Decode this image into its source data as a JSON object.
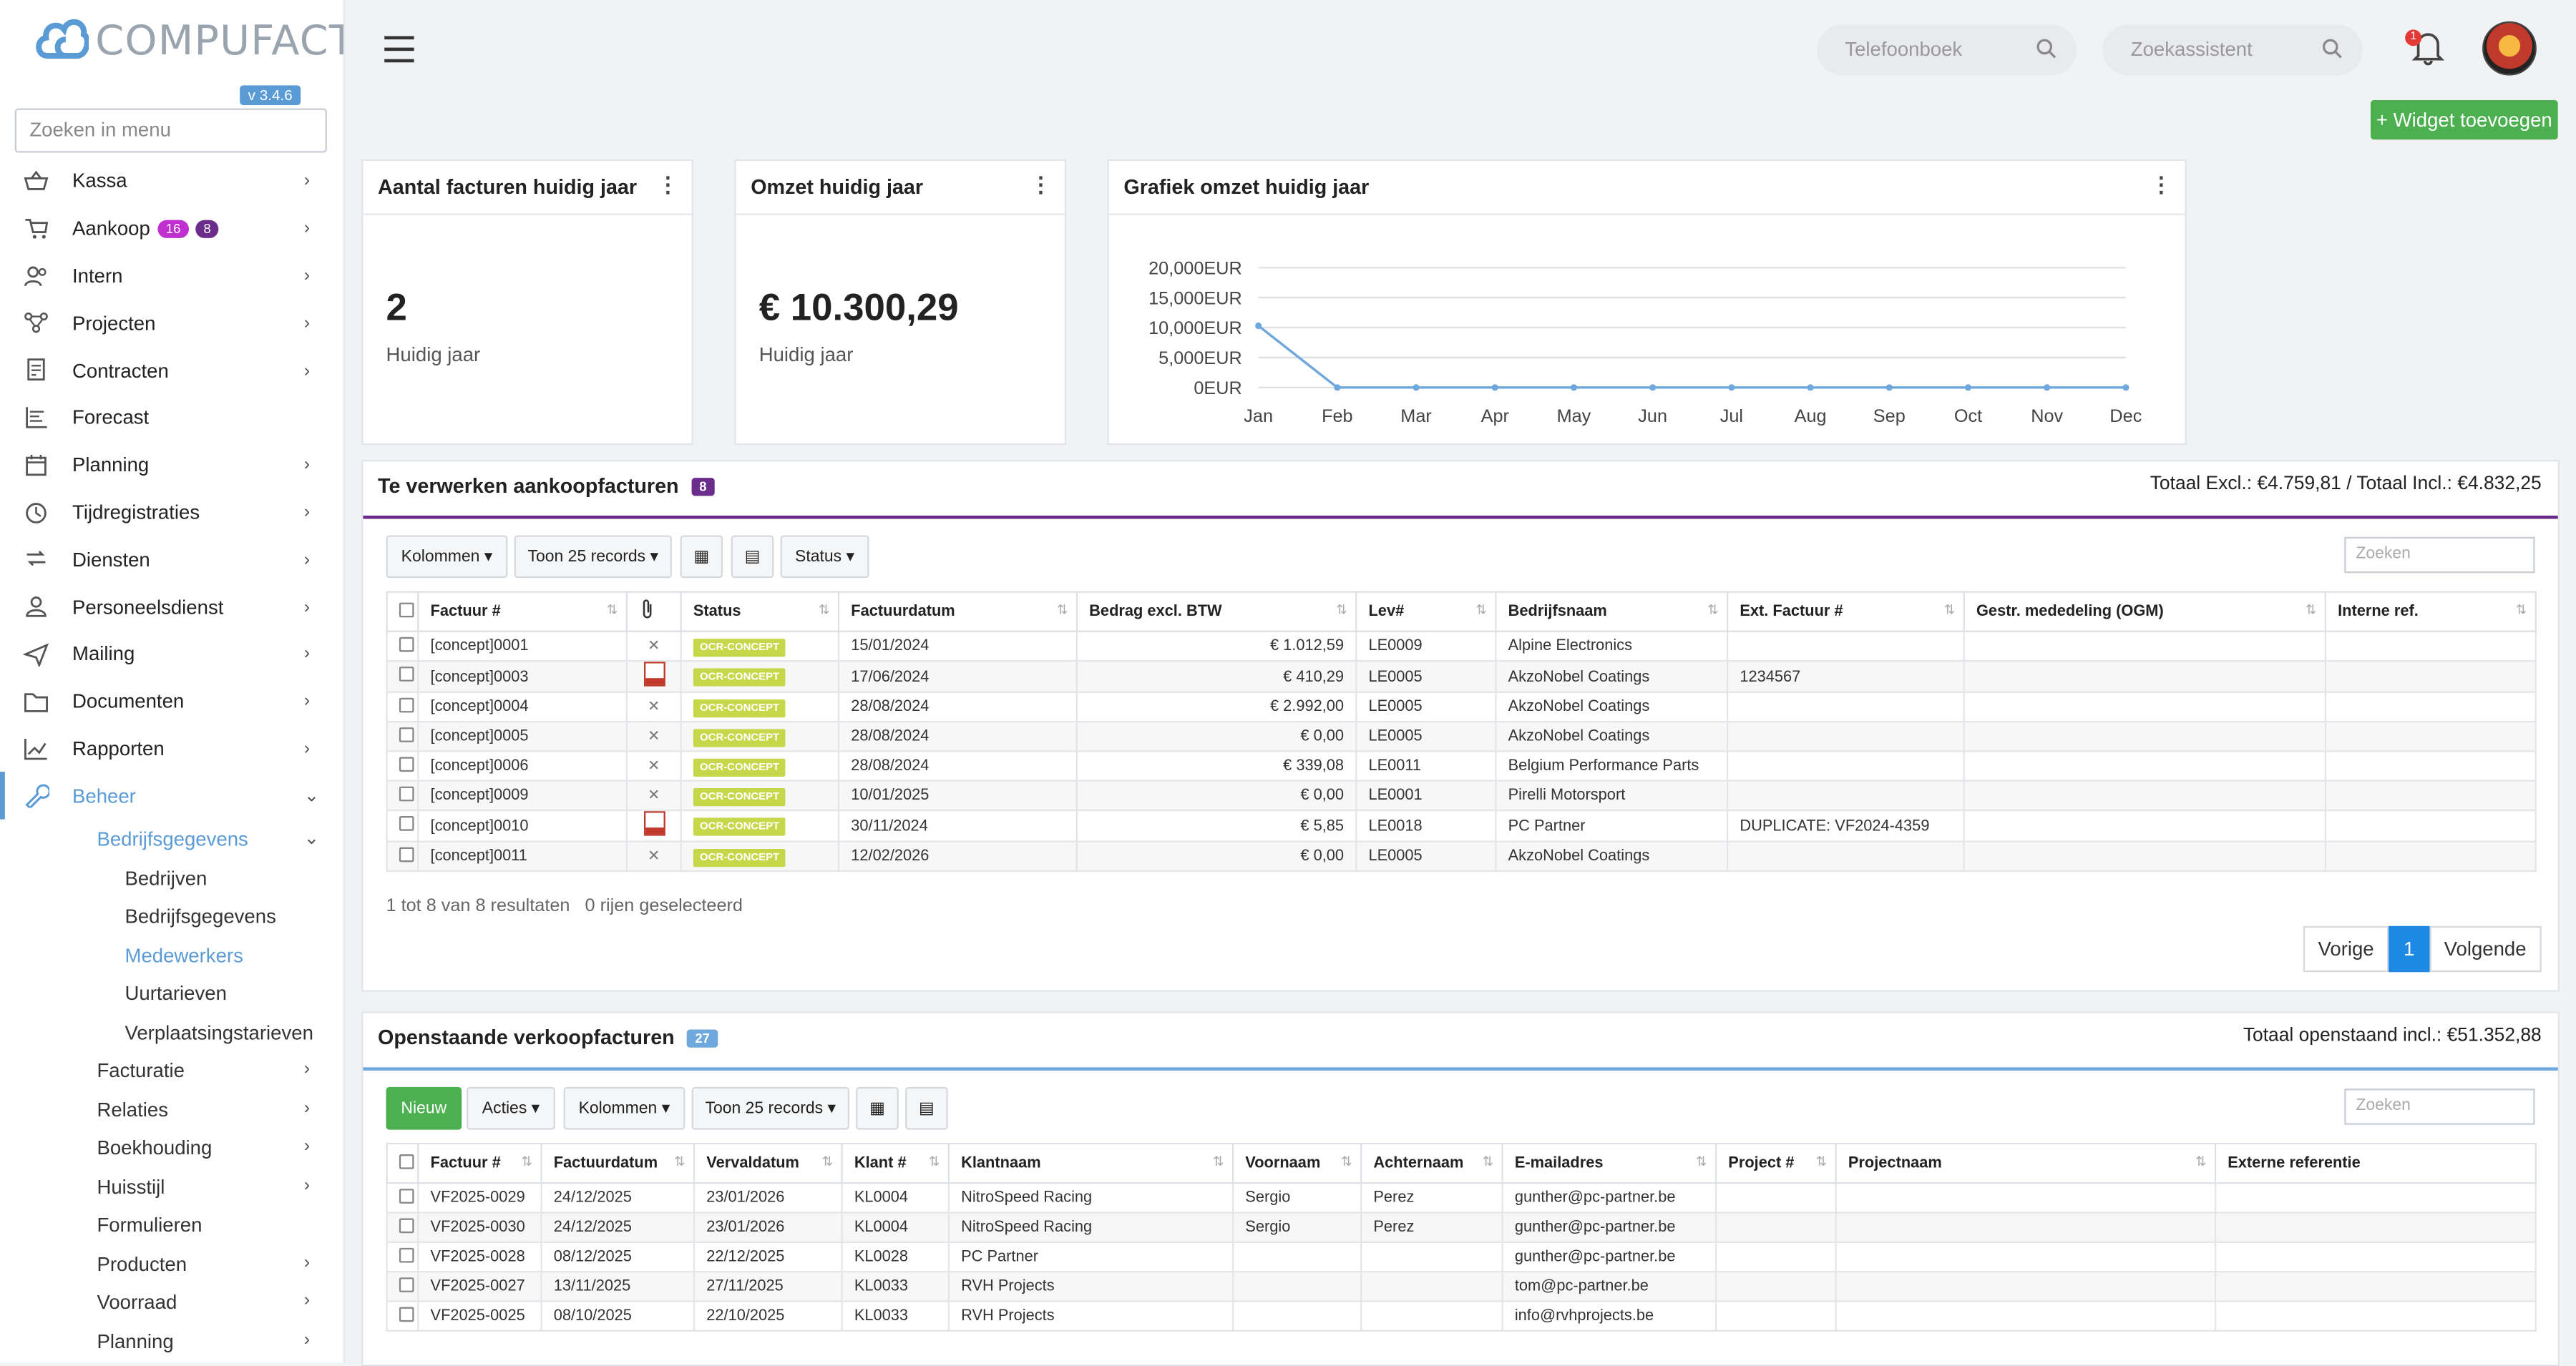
{
  "app": {
    "name": "COMPUFACT",
    "version": "v 3.4.6",
    "menu_search_placeholder": "Zoeken in menu"
  },
  "sidebar": {
    "items": [
      {
        "label": "Kassa",
        "icon": "basket-icon",
        "chevron": true
      },
      {
        "label": "Aankoop",
        "icon": "cart-icon",
        "chevron": true,
        "badges": [
          {
            "text": "16",
            "color": "#c030d0"
          },
          {
            "text": "8",
            "color": "#6a2d8c"
          }
        ]
      },
      {
        "label": "Intern",
        "icon": "users-icon",
        "chevron": true
      },
      {
        "label": "Projecten",
        "icon": "project-icon",
        "chevron": true
      },
      {
        "label": "Contracten",
        "icon": "contract-icon",
        "chevron": true
      },
      {
        "label": "Forecast",
        "icon": "forecast-icon",
        "chevron": false
      },
      {
        "label": "Planning",
        "icon": "calendar-icon",
        "chevron": true
      },
      {
        "label": "Tijdregistraties",
        "icon": "clock-icon",
        "chevron": true
      },
      {
        "label": "Diensten",
        "icon": "services-icon",
        "chevron": true
      },
      {
        "label": "Personeelsdienst",
        "icon": "person-icon",
        "chevron": true
      },
      {
        "label": "Mailing",
        "icon": "send-icon",
        "chevron": true
      },
      {
        "label": "Documenten",
        "icon": "folder-icon",
        "chevron": true
      },
      {
        "label": "Rapporten",
        "icon": "chart-line-icon",
        "chevron": true
      },
      {
        "label": "Beheer",
        "icon": "wrench-icon",
        "chevron": true,
        "active": true
      }
    ],
    "beheer_sub": [
      {
        "label": "Bedrijfsgegevens",
        "level": 1,
        "chevron": "down",
        "current": true
      },
      {
        "label": "Bedrijven",
        "level": 2
      },
      {
        "label": "Bedrijfsgegevens",
        "level": 2
      },
      {
        "label": "Medewerkers",
        "level": 2,
        "current": true
      },
      {
        "label": "Uurtarieven",
        "level": 2
      },
      {
        "label": "Verplaatsingstarieven",
        "level": 2
      },
      {
        "label": "Facturatie",
        "level": 1,
        "chevron": "right"
      },
      {
        "label": "Relaties",
        "level": 1,
        "chevron": "right"
      },
      {
        "label": "Boekhouding",
        "level": 1,
        "chevron": "right"
      },
      {
        "label": "Huisstijl",
        "level": 1,
        "chevron": "right"
      },
      {
        "label": "Formulieren",
        "level": 1
      },
      {
        "label": "Producten",
        "level": 1,
        "chevron": "right"
      },
      {
        "label": "Voorraad",
        "level": 1,
        "chevron": "right"
      },
      {
        "label": "Planning",
        "level": 1,
        "chevron": "right"
      }
    ]
  },
  "topbar": {
    "phonebook_placeholder": "Telefoonboek",
    "assistant_placeholder": "Zoekassistent",
    "notification_count": "1"
  },
  "widget_button": "+ Widget toevoegen",
  "widgets": {
    "invoices": {
      "title": "Aantal facturen huidig jaar",
      "value": "2",
      "sub": "Huidig jaar"
    },
    "revenue": {
      "title": "Omzet huidig jaar",
      "value": "€ 10.300,29",
      "sub": "Huidig jaar"
    },
    "chart": {
      "title": "Grafiek omzet huidig jaar"
    }
  },
  "chart_data": {
    "type": "line",
    "title": "Grafiek omzet huidig jaar",
    "categories": [
      "Jan",
      "Feb",
      "Mar",
      "Apr",
      "May",
      "Jun",
      "Jul",
      "Aug",
      "Sep",
      "Oct",
      "Nov",
      "Dec"
    ],
    "values": [
      10300.29,
      0,
      0,
      0,
      0,
      0,
      0,
      0,
      0,
      0,
      0,
      0
    ],
    "y_ticks": [
      "0EUR",
      "5,000EUR",
      "10,000EUR",
      "15,000EUR",
      "20,000EUR"
    ],
    "ylim": [
      0,
      20000
    ],
    "grid": true,
    "color": "#6fa8dc"
  },
  "purchase": {
    "title": "Te verwerken aankoopfacturen",
    "count": "8",
    "total": "Totaal Excl.: €4.759,81 / Totaal Incl.: €4.832,25",
    "buttons": {
      "columns": "Kolommen",
      "show": "Toon 25 records",
      "status": "Status"
    },
    "search_placeholder": "Zoeken",
    "headers": [
      "Factuur #",
      "",
      "Status",
      "Factuurdatum",
      "Bedrag excl. BTW",
      "Lev#",
      "Bedrijfsnaam",
      "Ext. Factuur #",
      "Gestr. mededeling (OGM)",
      "Interne ref."
    ],
    "rows": [
      {
        "nr": "[concept]0001",
        "att": "x",
        "status": "OCR-CONCEPT",
        "date": "15/01/2024",
        "amount": "€ 1.012,59",
        "lev": "LE0009",
        "company": "Alpine Electronics",
        "ext": "",
        "ogm": "",
        "ref": ""
      },
      {
        "nr": "[concept]0003",
        "att": "pdf",
        "status": "OCR-CONCEPT",
        "date": "17/06/2024",
        "amount": "€ 410,29",
        "lev": "LE0005",
        "company": "AkzoNobel Coatings",
        "ext": "1234567",
        "ogm": "",
        "ref": ""
      },
      {
        "nr": "[concept]0004",
        "att": "x",
        "status": "OCR-CONCEPT",
        "date": "28/08/2024",
        "amount": "€ 2.992,00",
        "lev": "LE0005",
        "company": "AkzoNobel Coatings",
        "ext": "",
        "ogm": "",
        "ref": ""
      },
      {
        "nr": "[concept]0005",
        "att": "x",
        "status": "OCR-CONCEPT",
        "date": "28/08/2024",
        "amount": "€ 0,00",
        "lev": "LE0005",
        "company": "AkzoNobel Coatings",
        "ext": "",
        "ogm": "",
        "ref": ""
      },
      {
        "nr": "[concept]0006",
        "att": "x",
        "status": "OCR-CONCEPT",
        "date": "28/08/2024",
        "amount": "€ 339,08",
        "lev": "LE0011",
        "company": "Belgium Performance Parts",
        "ext": "",
        "ogm": "",
        "ref": ""
      },
      {
        "nr": "[concept]0009",
        "att": "x",
        "status": "OCR-CONCEPT",
        "date": "10/01/2025",
        "amount": "€ 0,00",
        "lev": "LE0001",
        "company": "Pirelli Motorsport",
        "ext": "",
        "ogm": "",
        "ref": ""
      },
      {
        "nr": "[concept]0010",
        "att": "pdf",
        "status": "OCR-CONCEPT",
        "date": "30/11/2024",
        "amount": "€ 5,85",
        "lev": "LE0018",
        "company": "PC Partner",
        "ext": "DUPLICATE: VF2024-4359",
        "ogm": "",
        "ref": ""
      },
      {
        "nr": "[concept]0011",
        "att": "x",
        "status": "OCR-CONCEPT",
        "date": "12/02/2026",
        "amount": "€ 0,00",
        "lev": "LE0005",
        "company": "AkzoNobel Coatings",
        "ext": "",
        "ogm": "",
        "ref": ""
      }
    ],
    "info": "1 tot 8 van 8 resultaten",
    "selected": "0 rijen geselecteerd",
    "pager": {
      "prev": "Vorige",
      "page": "1",
      "next": "Volgende"
    }
  },
  "sales": {
    "title": "Openstaande verkoopfacturen",
    "count": "27",
    "total": "Totaal openstaand incl.: €51.352,88",
    "buttons": {
      "new": "Nieuw",
      "actions": "Acties",
      "columns": "Kolommen",
      "show": "Toon 25 records"
    },
    "search_placeholder": "Zoeken",
    "headers": [
      "Factuur #",
      "Factuurdatum",
      "Vervaldatum",
      "Klant #",
      "Klantnaam",
      "Voornaam",
      "Achternaam",
      "E-mailadres",
      "Project #",
      "Projectnaam",
      "Externe referentie"
    ],
    "rows": [
      {
        "nr": "VF2025-0029",
        "date": "24/12/2025",
        "due": "23/01/2026",
        "client": "KL0004",
        "name": "NitroSpeed Racing",
        "first": "Sergio",
        "last": "Perez",
        "email": "gunther@pc-partner.be",
        "proj": "",
        "projname": "",
        "ext": ""
      },
      {
        "nr": "VF2025-0030",
        "date": "24/12/2025",
        "due": "23/01/2026",
        "client": "KL0004",
        "name": "NitroSpeed Racing",
        "first": "Sergio",
        "last": "Perez",
        "email": "gunther@pc-partner.be",
        "proj": "",
        "projname": "",
        "ext": ""
      },
      {
        "nr": "VF2025-0028",
        "date": "08/12/2025",
        "due": "22/12/2025",
        "client": "KL0028",
        "name": "PC Partner",
        "first": "",
        "last": "",
        "email": "gunther@pc-partner.be",
        "proj": "",
        "projname": "",
        "ext": ""
      },
      {
        "nr": "VF2025-0027",
        "date": "13/11/2025",
        "due": "27/11/2025",
        "client": "KL0033",
        "name": "RVH Projects",
        "first": "",
        "last": "",
        "email": "tom@pc-partner.be",
        "proj": "",
        "projname": "",
        "ext": ""
      },
      {
        "nr": "VF2025-0025",
        "date": "08/10/2025",
        "due": "22/10/2025",
        "client": "KL0033",
        "name": "RVH Projects",
        "first": "",
        "last": "",
        "email": "info@rvhprojects.be",
        "proj": "",
        "projname": "",
        "ext": ""
      }
    ]
  }
}
